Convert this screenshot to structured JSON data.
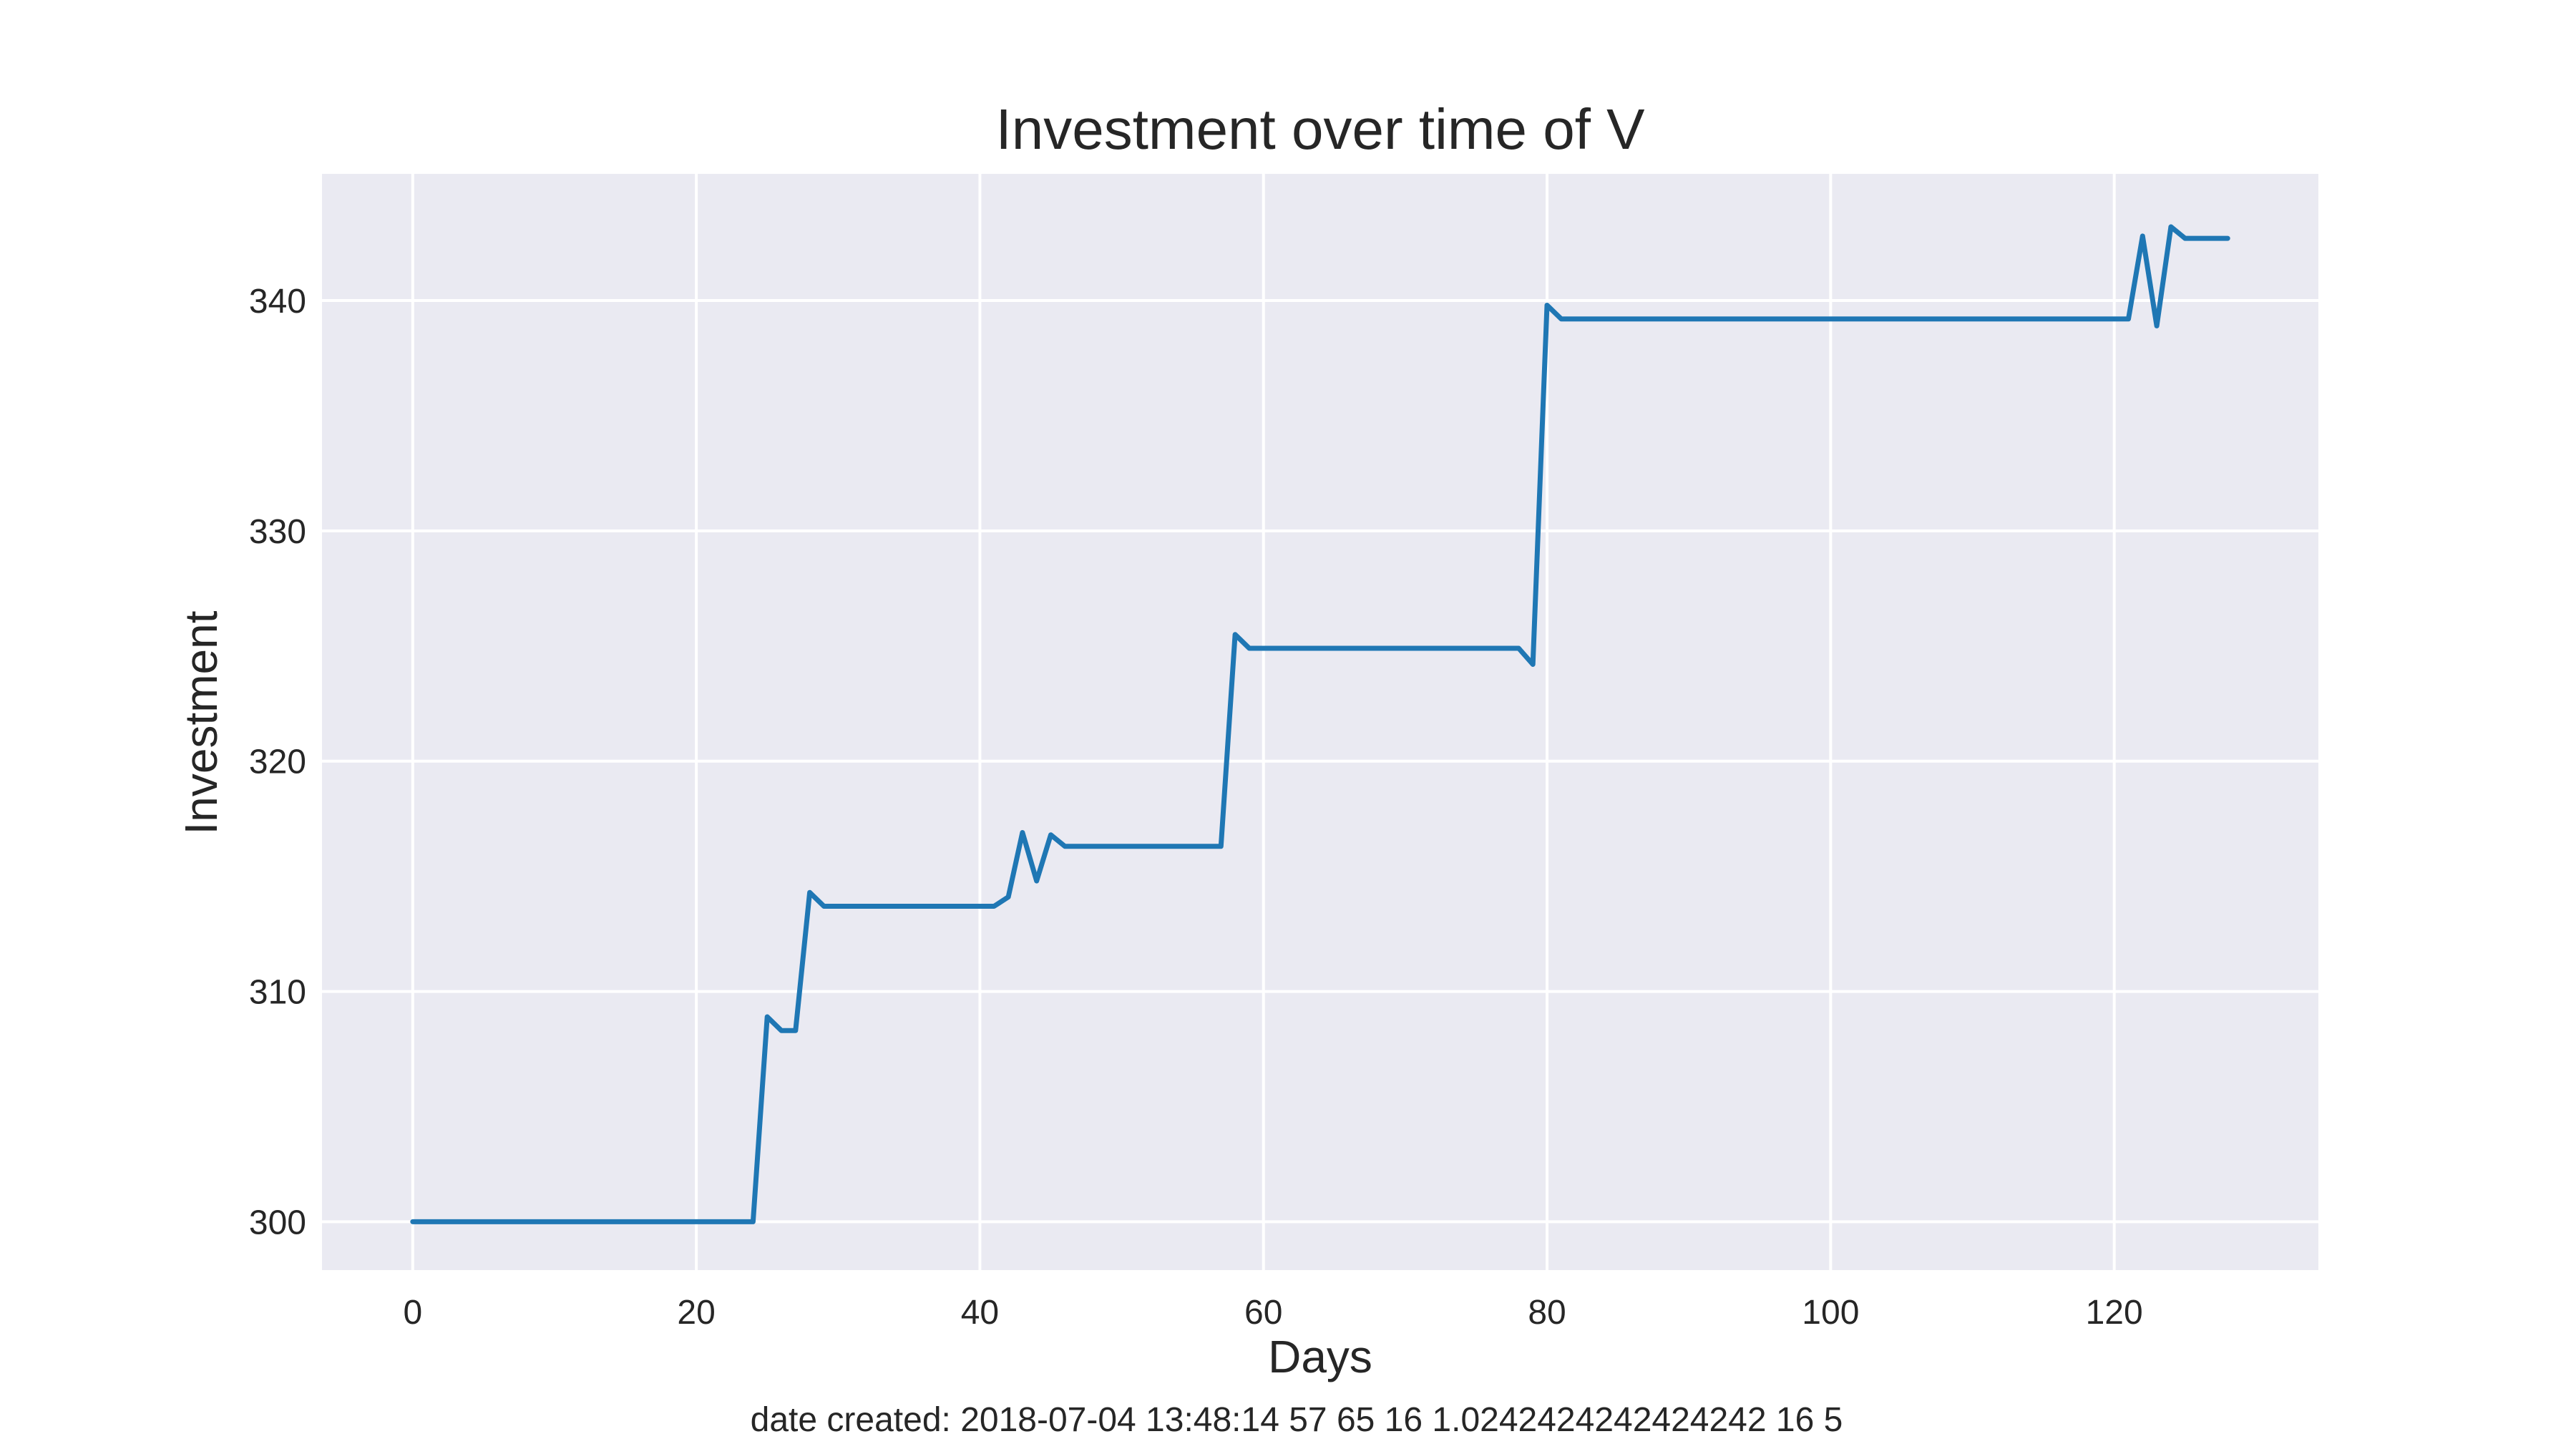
{
  "chart_data": {
    "type": "line",
    "title": "Investment over time of V",
    "xlabel": "Days",
    "ylabel": "Investment",
    "xlim": [
      -6.4,
      134.4
    ],
    "ylim": [
      297.9,
      345.5
    ],
    "xticks": [
      0,
      20,
      40,
      60,
      80,
      100,
      120
    ],
    "yticks": [
      300,
      310,
      320,
      330,
      340
    ],
    "grid": true,
    "series": [
      {
        "color": "#1f77b4",
        "x": [
          0,
          24,
          25,
          26,
          27,
          28,
          29,
          41,
          42,
          43,
          44,
          45,
          46,
          57,
          58,
          59,
          78,
          79,
          80,
          81,
          121,
          122,
          123,
          124,
          125,
          128
        ],
        "y": [
          300,
          300,
          308.9,
          308.3,
          308.3,
          314.3,
          313.7,
          313.7,
          314.1,
          316.9,
          314.8,
          316.8,
          316.3,
          316.3,
          325.5,
          324.9,
          324.9,
          324.2,
          339.8,
          339.2,
          339.2,
          342.8,
          338.9,
          343.2,
          342.7,
          342.7
        ]
      }
    ],
    "annotation": "date created: 2018-07-04 13:48:14 57 65 16 1.0242424242424242 16 5"
  },
  "style": {
    "plot_background": "#eaeaf2",
    "grid_color": "#ffffff",
    "line_color": "#1f77b4"
  }
}
